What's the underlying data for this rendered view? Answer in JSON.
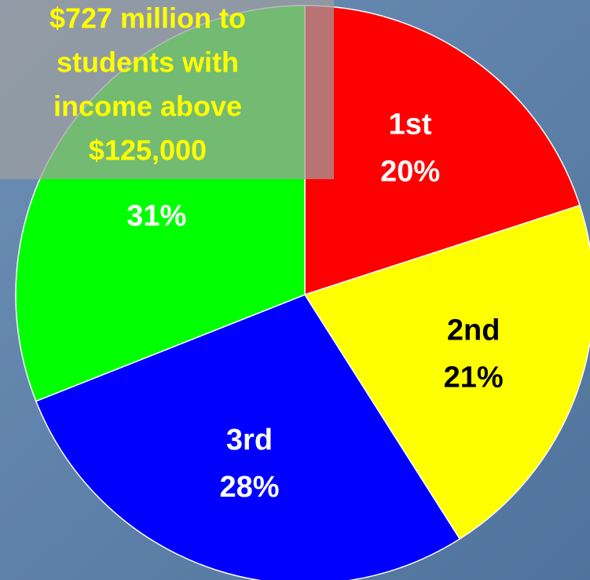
{
  "chart_data": {
    "type": "pie",
    "categories": [
      "1st",
      "2nd",
      "3rd",
      null
    ],
    "values": [
      20,
      21,
      28,
      31
    ],
    "value_labels": [
      "20%",
      "21%",
      "28%",
      "31%"
    ],
    "colors": [
      "#ff0000",
      "#ffff00",
      "#0000ff",
      "#00ff00"
    ],
    "label_colors": [
      "#ffffff",
      "#000000",
      "#ffffff",
      "#ffffff"
    ],
    "annotation": [
      "$727 million to",
      "students with",
      "income above",
      "$125,000"
    ]
  }
}
